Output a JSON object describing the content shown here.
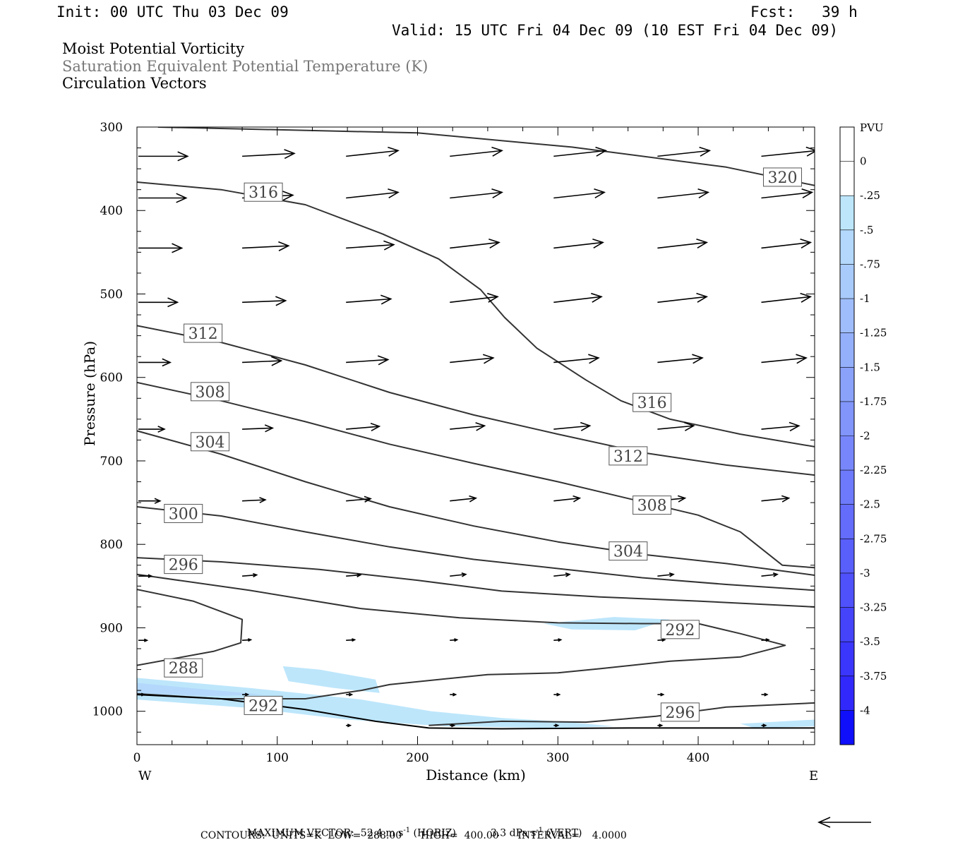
{
  "header": {
    "init": "Init: 00 UTC Thu 03 Dec 09",
    "fcst": "Fcst:   39 h",
    "valid": "Valid: 15 UTC Fri 04 Dec 09 (10 EST Fri 04 Dec 09)"
  },
  "titles": {
    "line1": "Moist Potential Vorticity",
    "line2": "Saturation Equivalent Potential Temperature (K)",
    "line3": "Circulation Vectors"
  },
  "footer": {
    "max_vector_label": "MAXIMUM VECTOR:",
    "horiz_value": "52.4 m s",
    "horiz_unit": "(HORIZ)",
    "vert_value": "3.3 dPa s",
    "vert_unit": "(VERT)",
    "exponent": "-1",
    "contours_line": "CONTOURS:  UNITS=K  LOW=  288.00      HIGH=  400.00      INTERVAL=    4.0000"
  },
  "colorbar": {
    "unit": "PVU",
    "levels": [
      "0",
      "-.25",
      "-.5",
      "-.75",
      "-1",
      "-1.25",
      "-1.5",
      "-1.75",
      "-2",
      "-2.25",
      "-2.5",
      "-2.75",
      "-3",
      "-3.25",
      "-3.5",
      "-3.75",
      "-4"
    ],
    "colors": [
      "#ffffff",
      "#ffffff",
      "#bde6fb",
      "#b3d8fb",
      "#a9cbfb",
      "#9fbdfb",
      "#95b0fb",
      "#8ba2fb",
      "#8195fb",
      "#7787fb",
      "#6d7afb",
      "#636cfb",
      "#595ffb",
      "#4f51fb",
      "#4544fb",
      "#3b36fb",
      "#3129fb",
      "#0f0ffb"
    ]
  },
  "chart_data": {
    "type": "contour cross-section",
    "xlabel": "Distance (km)",
    "ylabel": "Pressure (hPa)",
    "xlim": [
      0,
      483
    ],
    "ylim": [
      1040,
      300
    ],
    "x_ticks": [
      0,
      100,
      200,
      300,
      400
    ],
    "y_ticks": [
      300,
      400,
      500,
      600,
      700,
      800,
      900,
      1000
    ],
    "x_end_labels": {
      "left": "W",
      "right": "E"
    },
    "contours": [
      {
        "label": "320",
        "points": [
          [
            15,
            300
          ],
          [
            200,
            307
          ],
          [
            310,
            324
          ],
          [
            420,
            348
          ],
          [
            483,
            370
          ]
        ],
        "labels_at": [
          [
            445,
            360
          ]
        ]
      },
      {
        "label": "316",
        "points": [
          [
            0,
            366
          ],
          [
            60,
            375
          ],
          [
            120,
            393
          ],
          [
            175,
            428
          ],
          [
            215,
            458
          ],
          [
            245,
            495
          ],
          [
            262,
            528
          ],
          [
            285,
            565
          ],
          [
            320,
            603
          ],
          [
            345,
            628
          ],
          [
            380,
            650
          ],
          [
            430,
            668
          ],
          [
            483,
            683
          ]
        ],
        "labels_at": [
          [
            75,
            378
          ],
          [
            352,
            630
          ]
        ]
      },
      {
        "label": "312",
        "points": [
          [
            0,
            538
          ],
          [
            60,
            558
          ],
          [
            120,
            585
          ],
          [
            180,
            618
          ],
          [
            240,
            645
          ],
          [
            300,
            668
          ],
          [
            360,
            690
          ],
          [
            420,
            705
          ],
          [
            483,
            717
          ]
        ],
        "labels_at": [
          [
            32,
            547
          ],
          [
            335,
            694
          ]
        ]
      },
      {
        "label": "308",
        "points": [
          [
            0,
            606
          ],
          [
            60,
            628
          ],
          [
            120,
            653
          ],
          [
            180,
            680
          ],
          [
            240,
            703
          ],
          [
            300,
            725
          ],
          [
            350,
            745
          ],
          [
            400,
            765
          ],
          [
            430,
            785
          ],
          [
            460,
            825
          ],
          [
            483,
            828
          ]
        ],
        "labels_at": [
          [
            37,
            617
          ],
          [
            352,
            753
          ]
        ]
      },
      {
        "label": "304",
        "points": [
          [
            0,
            664
          ],
          [
            60,
            692
          ],
          [
            120,
            725
          ],
          [
            180,
            755
          ],
          [
            240,
            778
          ],
          [
            300,
            797
          ],
          [
            360,
            812
          ],
          [
            420,
            823
          ],
          [
            483,
            837
          ]
        ],
        "labels_at": [
          [
            37,
            677
          ],
          [
            335,
            808
          ]
        ]
      },
      {
        "label": "300",
        "points": [
          [
            0,
            755
          ],
          [
            60,
            766
          ],
          [
            120,
            785
          ],
          [
            180,
            803
          ],
          [
            240,
            818
          ],
          [
            300,
            829
          ],
          [
            360,
            840
          ],
          [
            420,
            848
          ],
          [
            483,
            855
          ]
        ],
        "labels_at": [
          [
            18,
            763
          ]
        ]
      },
      {
        "label": "296",
        "points": [
          [
            0,
            816
          ],
          [
            60,
            821
          ],
          [
            130,
            830
          ],
          [
            200,
            843
          ],
          [
            260,
            856
          ],
          [
            330,
            863
          ],
          [
            400,
            868
          ],
          [
            483,
            875
          ]
        ],
        "labels_at": [
          [
            18,
            824
          ]
        ]
      },
      {
        "label": "292",
        "points": [
          [
            0,
            836
          ],
          [
            80,
            855
          ],
          [
            160,
            877
          ],
          [
            230,
            888
          ],
          [
            300,
            894
          ],
          [
            360,
            895
          ],
          [
            400,
            895
          ],
          [
            430,
            907
          ],
          [
            462,
            921
          ],
          [
            430,
            935
          ],
          [
            380,
            940
          ],
          [
            330,
            949
          ],
          [
            300,
            954
          ],
          [
            250,
            956
          ],
          [
            180,
            968
          ],
          [
            160,
            975
          ],
          [
            120,
            985
          ],
          [
            60,
            985
          ],
          [
            0,
            979
          ]
        ],
        "labels_at": [
          [
            372,
            902
          ],
          [
            75,
            993
          ]
        ]
      },
      {
        "label": "288",
        "points": [
          [
            0,
            854
          ],
          [
            40,
            868
          ],
          [
            75,
            890
          ],
          [
            74,
            918
          ],
          [
            55,
            928
          ],
          [
            0,
            945
          ]
        ],
        "labels_at": [
          [
            18,
            948
          ]
        ]
      },
      {
        "label": "296",
        "points": [
          [
            208,
            1017
          ],
          [
            260,
            1012
          ],
          [
            320,
            1013
          ],
          [
            370,
            1006
          ],
          [
            420,
            995
          ],
          [
            483,
            990
          ]
        ],
        "labels_at": [
          [
            372,
            1001
          ]
        ]
      }
    ],
    "pv_shading": [
      {
        "level": "-.25",
        "points": [
          [
            0,
            960
          ],
          [
            80,
            972
          ],
          [
            160,
            986
          ],
          [
            210,
            1000
          ],
          [
            260,
            1008
          ],
          [
            300,
            1012
          ],
          [
            340,
            1018
          ],
          [
            300,
            1020
          ],
          [
            220,
            1018
          ],
          [
            150,
            1010
          ],
          [
            80,
            996
          ],
          [
            0,
            986
          ]
        ]
      },
      {
        "level": "-.5",
        "points": [
          [
            0,
            966
          ],
          [
            50,
            974
          ],
          [
            90,
            980
          ],
          [
            50,
            982
          ],
          [
            0,
            978
          ]
        ]
      },
      {
        "level": "-.25",
        "points": [
          [
            104,
            946
          ],
          [
            130,
            950
          ],
          [
            170,
            962
          ],
          [
            173,
            978
          ],
          [
            140,
            972
          ],
          [
            108,
            964
          ]
        ]
      },
      {
        "level": "-.25",
        "points": [
          [
            290,
            895
          ],
          [
            340,
            887
          ],
          [
            380,
            890
          ],
          [
            355,
            903
          ],
          [
            310,
            902
          ]
        ]
      },
      {
        "level": "-.25",
        "points": [
          [
            430,
            1015
          ],
          [
            483,
            1010
          ],
          [
            483,
            1018
          ],
          [
            440,
            1020
          ]
        ]
      }
    ],
    "vector_rows": [
      {
        "p": 335,
        "x": [
          0,
          74,
          148,
          222,
          296,
          370,
          444
        ],
        "u": [
          34,
          36,
          36,
          36,
          36,
          36,
          38
        ],
        "w": [
          0,
          -0.5,
          -1,
          -1,
          -1,
          -1,
          -1
        ]
      },
      {
        "p": 385,
        "x": [
          0,
          74,
          148,
          222,
          296,
          370,
          444
        ],
        "u": [
          33,
          35,
          36,
          36,
          35,
          35,
          35
        ],
        "w": [
          0,
          -0.5,
          -1,
          -1,
          -1,
          -1,
          -1
        ]
      },
      {
        "p": 445,
        "x": [
          0,
          74,
          148,
          222,
          296,
          370,
          444
        ],
        "u": [
          30,
          32,
          33,
          34,
          34,
          34,
          34
        ],
        "w": [
          0,
          -0.4,
          -0.6,
          -1,
          -1,
          -1,
          -1
        ]
      },
      {
        "p": 510,
        "x": [
          0,
          74,
          148,
          222,
          296,
          370,
          444
        ],
        "u": [
          27,
          30,
          31,
          33,
          33,
          34,
          34
        ],
        "w": [
          0,
          -0.3,
          -0.6,
          -1,
          -1,
          -1,
          -1
        ]
      },
      {
        "p": 582,
        "x": [
          0,
          74,
          148,
          222,
          296,
          370,
          444
        ],
        "u": [
          22,
          27,
          29,
          30,
          31,
          31,
          31
        ],
        "w": [
          0,
          -0.3,
          -0.5,
          -0.8,
          -0.8,
          -0.8,
          -0.8
        ]
      },
      {
        "p": 662,
        "x": [
          0,
          74,
          148,
          222,
          296,
          370,
          444
        ],
        "u": [
          18,
          21,
          23,
          24,
          25,
          25,
          26
        ],
        "w": [
          0,
          -0.2,
          -0.5,
          -0.6,
          -0.6,
          -0.6,
          -0.6
        ]
      },
      {
        "p": 748,
        "x": [
          0,
          74,
          148,
          222,
          296,
          370,
          444
        ],
        "u": [
          15,
          16,
          17,
          18,
          18,
          19,
          19
        ],
        "w": [
          0,
          -0.2,
          -0.4,
          -0.5,
          -0.5,
          -0.5,
          -0.5
        ]
      },
      {
        "p": 838,
        "x": [
          0,
          74,
          148,
          222,
          296,
          370,
          444
        ],
        "u": [
          9,
          10,
          10,
          11,
          11,
          11,
          11
        ],
        "w": [
          0,
          -0.2,
          -0.2,
          -0.3,
          -0.3,
          -0.3,
          -0.3
        ]
      },
      {
        "p": 915,
        "x": [
          0,
          74,
          148,
          222,
          296,
          370,
          444
        ],
        "u": [
          6,
          6,
          6,
          5,
          5,
          5,
          5
        ],
        "w": [
          0,
          -0.1,
          -0.1,
          -0.1,
          -0.1,
          -0.1,
          -0.1
        ]
      },
      {
        "p": 980,
        "x": [
          0,
          74,
          148,
          222,
          296,
          370,
          444
        ],
        "u": [
          4,
          4,
          4,
          4,
          4,
          4,
          4
        ],
        "w": [
          0,
          0,
          0,
          0,
          0,
          0,
          0
        ]
      },
      {
        "p": 1017,
        "x": [
          148,
          222,
          296,
          370,
          444
        ],
        "u": [
          3,
          3,
          3,
          3,
          3
        ],
        "w": [
          0,
          0,
          0,
          0,
          0
        ]
      }
    ],
    "terrain": {
      "points": [
        [
          0,
          980
        ],
        [
          60,
          985
        ],
        [
          120,
          998
        ],
        [
          170,
          1012
        ],
        [
          208,
          1020
        ],
        [
          260,
          1021
        ],
        [
          350,
          1020
        ],
        [
          483,
          1020
        ]
      ]
    },
    "max_vector": {
      "horiz": 52.4,
      "vert": 3.3
    }
  }
}
